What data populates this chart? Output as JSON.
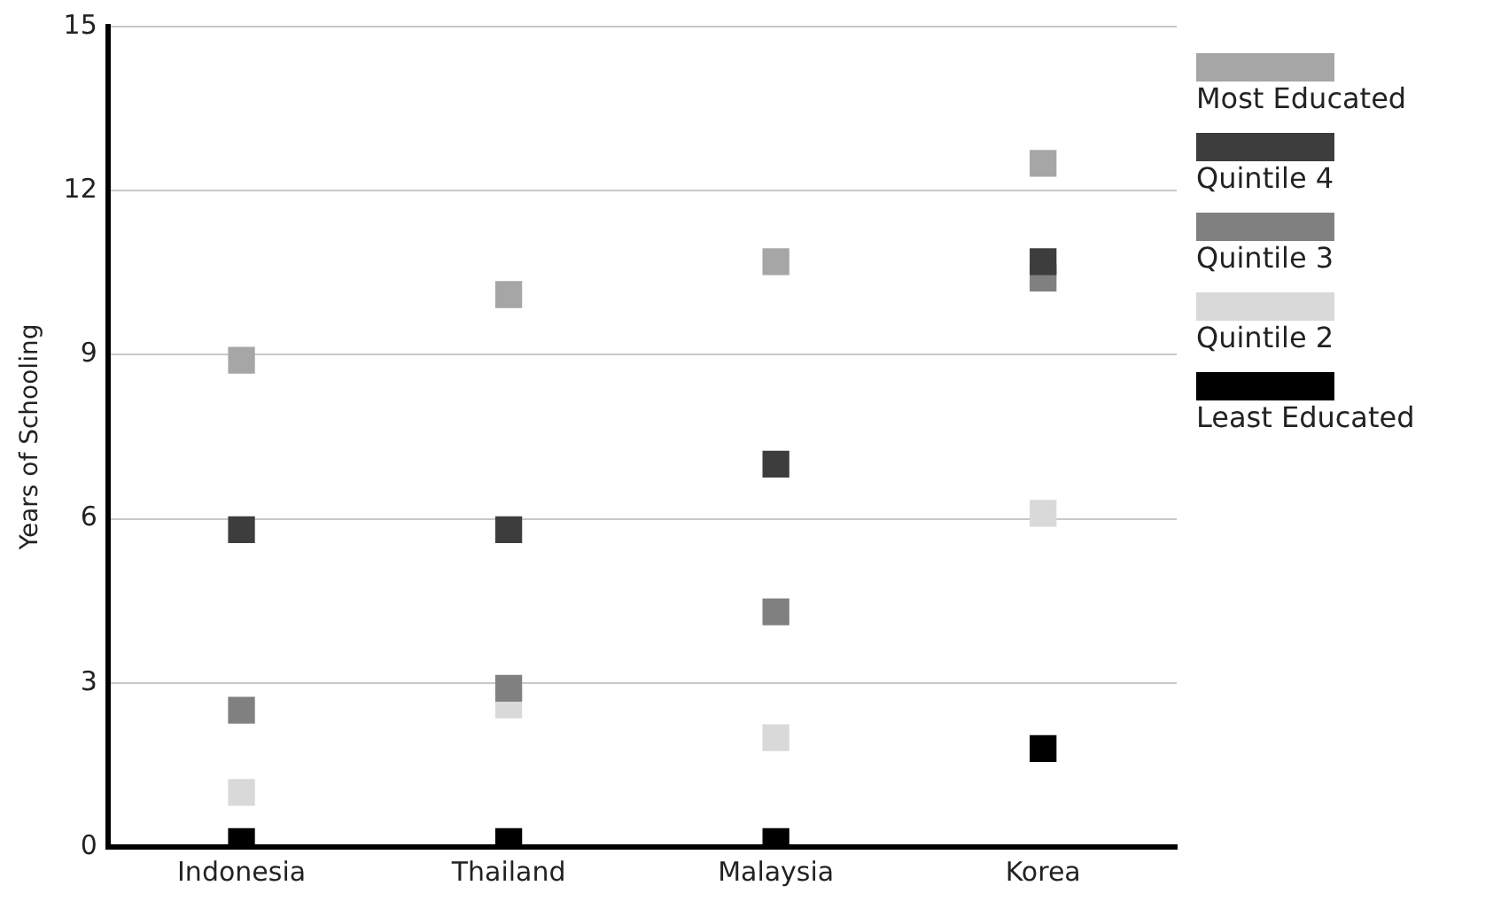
{
  "chart_data": {
    "type": "scatter",
    "ylabel": "Years of Schooling",
    "categories": [
      "Indonesia",
      "Thailand",
      "Malaysia",
      "Korea"
    ],
    "series": [
      {
        "name": "Most Educated",
        "color": "#a6a6a6",
        "values": [
          8.9,
          10.1,
          10.7,
          12.5
        ]
      },
      {
        "name": "Quintile 4",
        "color": "#3d3d3d",
        "values": [
          5.8,
          5.8,
          7.0,
          10.7
        ]
      },
      {
        "name": "Quintile 3",
        "color": "#808080",
        "values": [
          2.5,
          2.9,
          4.3,
          10.4
        ]
      },
      {
        "name": "Quintile 2",
        "color": "#d9d9d9",
        "values": [
          1.0,
          2.6,
          2.0,
          6.1
        ]
      },
      {
        "name": "Least Educated",
        "color": "#000000",
        "values": [
          0.1,
          0.1,
          0.1,
          1.8
        ]
      }
    ],
    "ylim": [
      0,
      15
    ],
    "yticks": [
      0,
      3,
      6,
      9,
      12,
      15
    ],
    "grid": "y",
    "legend": "right",
    "marker": "square"
  }
}
